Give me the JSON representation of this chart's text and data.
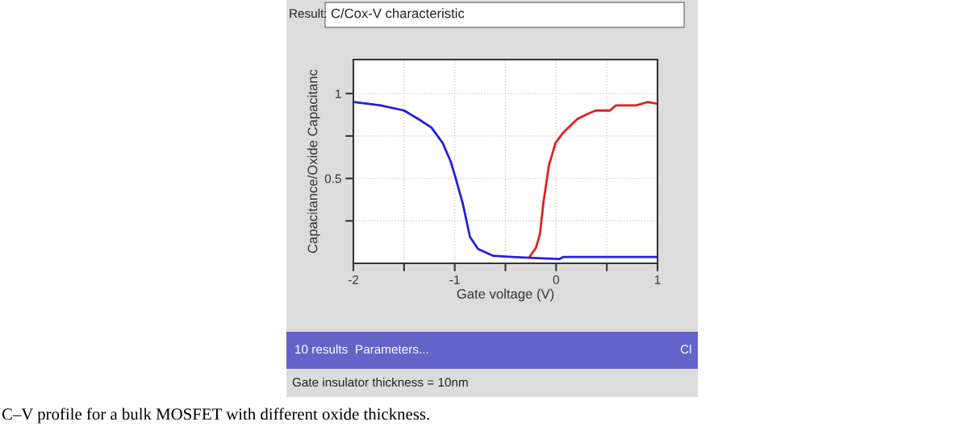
{
  "chart_data": {
    "type": "line",
    "title": "C/Cox-V characteristic",
    "xlabel": "Gate voltage (V)",
    "ylabel": "Capacitance/Oxide Capacitanc",
    "xlim": [
      -2,
      1
    ],
    "ylim": [
      0,
      1.2
    ],
    "xticks": [
      -2,
      {
        "value": -1.5,
        "label": null
      },
      -1,
      {
        "value": -0.5,
        "label": null
      },
      0,
      {
        "value": 0.5,
        "label": null
      },
      1
    ],
    "yticks": [
      {
        "value": 0.25,
        "label": null
      },
      0.5,
      {
        "value": 0.75,
        "label": null
      },
      1
    ],
    "grid": true,
    "series": [
      {
        "color": "#e02020",
        "x": [
          -0.26,
          -0.2,
          -0.16,
          -0.125,
          -0.07,
          -0.005,
          0.07,
          0.21,
          0.31,
          0.39,
          0.53,
          0.59,
          0.79,
          0.9,
          1.0
        ],
        "values": [
          0.04,
          0.09,
          0.17,
          0.36,
          0.58,
          0.71,
          0.77,
          0.85,
          0.88,
          0.9,
          0.9,
          0.93,
          0.93,
          0.95,
          0.94
        ]
      },
      {
        "color": "#2020e0",
        "x": [
          -2,
          -1.73,
          -1.5,
          -1.36,
          -1.23,
          -1.12,
          -1.04,
          -0.99,
          -0.92,
          -0.85,
          -0.77,
          -0.62,
          -0.43,
          -0.125,
          0.03,
          0.07,
          1.0
        ],
        "values": [
          0.95,
          0.93,
          0.9,
          0.85,
          0.8,
          0.71,
          0.6,
          0.5,
          0.35,
          0.155,
          0.084,
          0.044,
          0.037,
          0.029,
          0.025,
          0.037,
          0.037
        ]
      }
    ],
    "annotations": [
      "Result:",
      "10 results",
      "Parameters...",
      "Cl",
      "Gate insulator thickness = 10nm",
      "C–V profile for a bulk MOSFET with different oxide thickness."
    ]
  }
}
